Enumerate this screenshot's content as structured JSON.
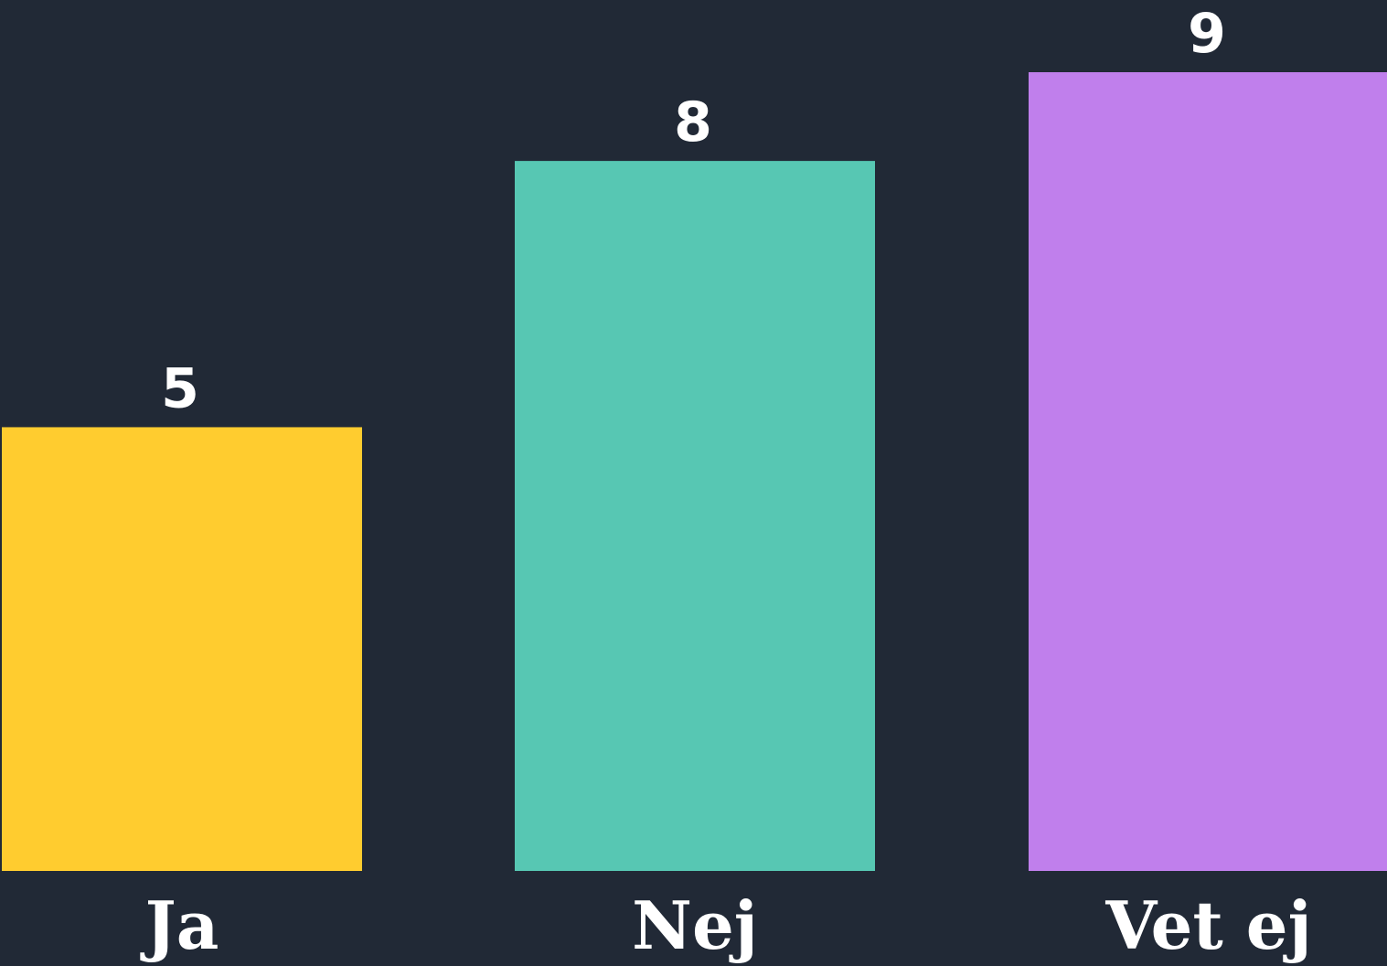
{
  "chart_data": {
    "type": "bar",
    "title": "",
    "xlabel": "",
    "ylabel": "",
    "categories": [
      "Ja",
      "Nej",
      "Vet ej"
    ],
    "values": [
      5,
      8,
      9
    ],
    "ylim": [
      0,
      9
    ],
    "grid": false,
    "legend": "none",
    "colors": [
      "#FFCC2F",
      "#57C7B3",
      "#C07FEC"
    ],
    "background": "#212936"
  }
}
